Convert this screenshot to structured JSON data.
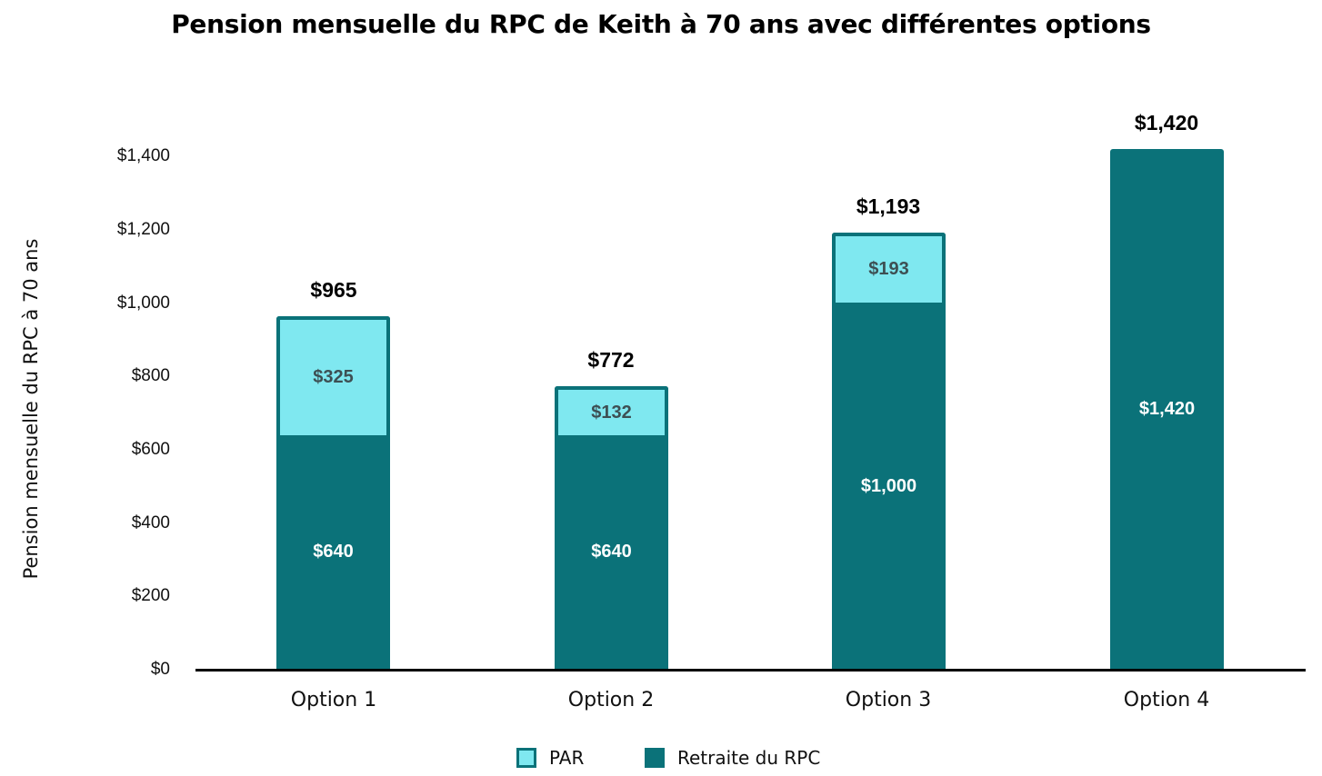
{
  "chart_data": {
    "type": "bar",
    "stacked": true,
    "title": "Pension mensuelle du RPC de Keith à 70 ans avec différentes options",
    "xlabel": "",
    "ylabel": "Pension mensuelle du RPC à 70 ans",
    "categories": [
      "Option 1",
      "Option 2",
      "Option 3",
      "Option 4"
    ],
    "series": [
      {
        "name": "Retraite du RPC",
        "color": "#0b7279",
        "values": [
          640,
          640,
          1000,
          1420
        ],
        "labels": [
          "$640",
          "$640",
          "$1,000",
          "$1,420"
        ]
      },
      {
        "name": "PAR",
        "color": "#7fe8f0",
        "values": [
          325,
          132,
          193,
          0
        ],
        "labels": [
          "$325",
          "$132",
          "$193",
          ""
        ]
      }
    ],
    "totals": [
      965,
      772,
      1193,
      1420
    ],
    "total_labels": [
      "$965",
      "$772",
      "$1,193",
      "$1,420"
    ],
    "ylim": [
      0,
      1400
    ],
    "yticks": [
      0,
      200,
      400,
      600,
      800,
      1000,
      1200,
      1400
    ],
    "ytick_labels": [
      "$0",
      "$200",
      "$400",
      "$600",
      "$800",
      "$1,000",
      "$1,200",
      "$1,400"
    ],
    "grid": false,
    "legend_position": "bottom",
    "legend": [
      "PAR",
      "Retraite du RPC"
    ]
  }
}
